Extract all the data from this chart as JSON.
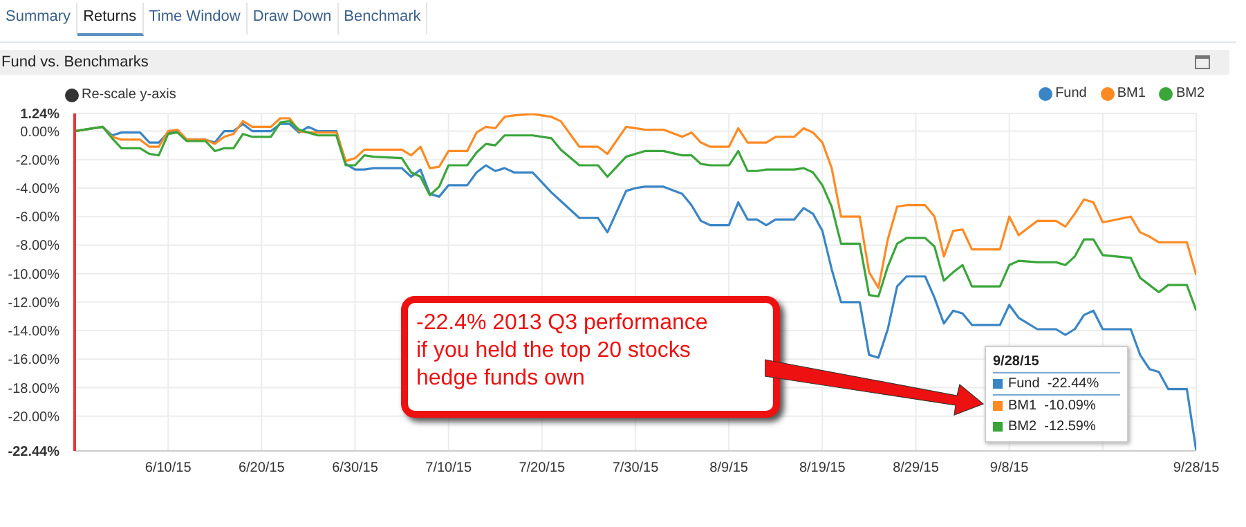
{
  "chart_data": {
    "type": "line",
    "title": "Fund vs. Benchmarks",
    "annotations": [
      "Summary",
      "Returns",
      "Time Window",
      "Draw Down",
      "Benchmark",
      "Re-scale y-axis",
      "-22.4% 2013 Q3 performance\nif you held the top 20 stocks\nhedge funds own",
      "9/28/15\nFund  -22.44%\nBM1  -10.09%\nBM2  -12.59%"
    ],
    "x": [
      "--05-31",
      "--06-03",
      "--06-04",
      "--06-05",
      "--06-07",
      "--06-08",
      "--06-09",
      "--06-10",
      "--06-11",
      "--06-12",
      "--06-14",
      "--06-15",
      "--06-16",
      "--06-17",
      "--06-18",
      "--06-19",
      "--06-21",
      "--06-22",
      "--06-23",
      "--06-24",
      "--06-25",
      "--06-26",
      "--06-28",
      "--06-29",
      "--06-30",
      "--07-01",
      "--07-02",
      "--07-05",
      "--07-06",
      "--07-07",
      "--07-08",
      "--07-09",
      "--07-10",
      "--07-12",
      "--07-13",
      "--07-14",
      "--07-15",
      "--07-16",
      "--07-17",
      "--07-19",
      "--07-21",
      "--07-22",
      "--07-24",
      "--07-26",
      "--07-27",
      "--07-29",
      "--07-30",
      "--07-31",
      "--08-02",
      "--08-04",
      "--08-05",
      "--08-06",
      "--08-07",
      "--08-09",
      "--08-10",
      "--08-11",
      "--08-12",
      "--08-13",
      "--08-14",
      "--08-16",
      "--08-17",
      "--08-18",
      "--08-19",
      "--08-20",
      "--08-21",
      "--08-23",
      "--08-24",
      "--08-25",
      "--08-26",
      "--08-27",
      "--08-28",
      "--08-30",
      "--08-31",
      "--09-01",
      "--09-02",
      "--09-03",
      "--09-04",
      "--09-07",
      "--09-08",
      "--09-09",
      "--09-11",
      "--09-13",
      "--09-14",
      "--09-15",
      "--09-16",
      "--09-17",
      "--09-18",
      "--09-21",
      "--09-22",
      "--09-23",
      "--09-24",
      "--09-25",
      "--09-27",
      "--09-28"
    ],
    "series": [
      {
        "name": "Fund",
        "color": "#3a85c5",
        "values": [
          0,
          0.3,
          -0.3,
          -0.1,
          -0.1,
          -0.8,
          -0.8,
          -0.1,
          0,
          -0.6,
          -0.6,
          -0.8,
          0,
          0,
          0.5,
          0,
          0,
          0.5,
          0.5,
          -0.1,
          0.3,
          0,
          0,
          -2.3,
          -2.7,
          -2.7,
          -2.6,
          -2.6,
          -3.2,
          -2.7,
          -4.4,
          -4.6,
          -3.8,
          -3.8,
          -2.9,
          -2.4,
          -2.8,
          -2.6,
          -2.9,
          -2.9,
          -4.3,
          -4.9,
          -6.1,
          -6.1,
          -7.1,
          -4.2,
          -4.0,
          -3.9,
          -3.9,
          -4.4,
          -5.2,
          -6.3,
          -6.6,
          -6.6,
          -5.0,
          -6.2,
          -6.2,
          -6.6,
          -6.2,
          -6.2,
          -5.4,
          -5.8,
          -7.0,
          -9.7,
          -12.0,
          -12.0,
          -15.7,
          -15.9,
          -13.9,
          -10.9,
          -10.2,
          -10.2,
          -11.7,
          -13.5,
          -12.6,
          -12.8,
          -13.6,
          -13.6,
          -12.2,
          -13.1,
          -13.9,
          -13.9,
          -14.3,
          -13.9,
          -12.9,
          -12.6,
          -13.9,
          -13.9,
          -15.7,
          -16.7,
          -16.9,
          -18.1,
          -18.1,
          -22.44
        ]
      },
      {
        "name": "BM1",
        "color": "#ff8a24",
        "values": [
          0,
          0.3,
          -0.4,
          -0.6,
          -0.6,
          -1.1,
          -1.1,
          0,
          0.1,
          -0.6,
          -0.6,
          -0.9,
          -0.4,
          -0.2,
          0.7,
          0.3,
          0.3,
          0.9,
          0.9,
          0,
          -0.1,
          -0.1,
          -0.1,
          -2.1,
          -1.9,
          -1.3,
          -1.3,
          -1.3,
          -1.7,
          -1.1,
          -2.6,
          -2.5,
          -1.4,
          -1.4,
          -0.1,
          0.3,
          0.2,
          1.0,
          1.1,
          1.2,
          1.0,
          0.7,
          -1.1,
          -1.1,
          -1.6,
          0.3,
          0.2,
          0.1,
          0.1,
          -0.4,
          -0.1,
          -0.8,
          -1.1,
          -1.1,
          0.2,
          -0.8,
          -0.8,
          -0.8,
          -0.4,
          -0.4,
          0.2,
          -0.1,
          -0.8,
          -2.6,
          -6.0,
          -6.0,
          -9.9,
          -11.0,
          -7.6,
          -5.3,
          -5.2,
          -5.2,
          -6.0,
          -8.8,
          -7.0,
          -6.9,
          -8.3,
          -8.3,
          -6.0,
          -7.3,
          -6.3,
          -6.3,
          -6.7,
          -5.8,
          -4.8,
          -5.0,
          -6.4,
          -6.0,
          -7.1,
          -7.4,
          -7.8,
          -7.8,
          -7.8,
          -10.09
        ]
      },
      {
        "name": "BM2",
        "color": "#3aa63a",
        "values": [
          0,
          0.3,
          -0.5,
          -1.2,
          -1.2,
          -1.6,
          -1.7,
          -0.2,
          -0.1,
          -0.7,
          -0.7,
          -1.4,
          -1.2,
          -1.2,
          -0.2,
          -0.4,
          -0.4,
          0.6,
          0.7,
          0.1,
          -0.1,
          -0.3,
          -0.3,
          -2.4,
          -2.4,
          -1.7,
          -1.8,
          -1.9,
          -2.9,
          -3.2,
          -4.5,
          -3.9,
          -2.4,
          -2.4,
          -1.5,
          -0.9,
          -1.0,
          -0.3,
          -0.3,
          -0.3,
          -0.5,
          -1.3,
          -2.4,
          -2.4,
          -3.2,
          -1.8,
          -1.6,
          -1.4,
          -1.4,
          -1.7,
          -1.7,
          -2.3,
          -2.4,
          -2.4,
          -1.4,
          -2.8,
          -2.8,
          -2.7,
          -2.7,
          -2.7,
          -2.6,
          -2.9,
          -3.8,
          -5.3,
          -7.9,
          -7.9,
          -11.5,
          -11.6,
          -9.5,
          -7.9,
          -7.5,
          -7.5,
          -8.1,
          -10.5,
          -9.9,
          -9.4,
          -10.9,
          -10.9,
          -9.4,
          -9.1,
          -9.2,
          -9.2,
          -9.4,
          -8.8,
          -7.6,
          -7.6,
          -8.7,
          -8.9,
          -10.3,
          -10.8,
          -11.3,
          -10.8,
          -10.8,
          -12.59
        ]
      }
    ],
    "xlim": [
      "--05-31",
      "--09-28"
    ],
    "xticks": [
      {
        "value": "--06-10",
        "label": "6/10/15"
      },
      {
        "value": "--06-20",
        "label": "6/20/15"
      },
      {
        "value": "--06-30",
        "label": "6/30/15"
      },
      {
        "value": "--07-10",
        "label": "7/10/15"
      },
      {
        "value": "--07-20",
        "label": "7/20/15"
      },
      {
        "value": "--07-30",
        "label": "7/30/15"
      },
      {
        "value": "--08-09",
        "label": "8/9/15"
      },
      {
        "value": "--08-19",
        "label": "8/19/15"
      },
      {
        "value": "--08-29",
        "label": "8/29/15"
      },
      {
        "value": "--09-08",
        "label": "9/8/15"
      },
      {
        "value": "--09-18",
        "label": null
      },
      {
        "value": "--09-28",
        "label": "9/28/15"
      }
    ],
    "ylim": [
      -22.44,
      1.24
    ],
    "yticks": [
      {
        "value": 1.24,
        "label": "1.24%"
      },
      {
        "value": 0,
        "label": "0.00%"
      },
      {
        "value": -2,
        "label": "-2.00%"
      },
      {
        "value": -4,
        "label": "-4.00%"
      },
      {
        "value": -6,
        "label": "-6.00%"
      },
      {
        "value": -8,
        "label": "-8.00%"
      },
      {
        "value": -10,
        "label": "-10.00%"
      },
      {
        "value": -12,
        "label": "-12.00%"
      },
      {
        "value": -14,
        "label": "-14.00%"
      },
      {
        "value": -16,
        "label": "-16.00%"
      },
      {
        "value": -18,
        "label": "-18.00%"
      },
      {
        "value": -20,
        "label": "-20.00%"
      },
      {
        "value": -22.44,
        "label": "-22.44%"
      }
    ],
    "grid": true,
    "legend": "top right",
    "line_style": "solid"
  }
}
